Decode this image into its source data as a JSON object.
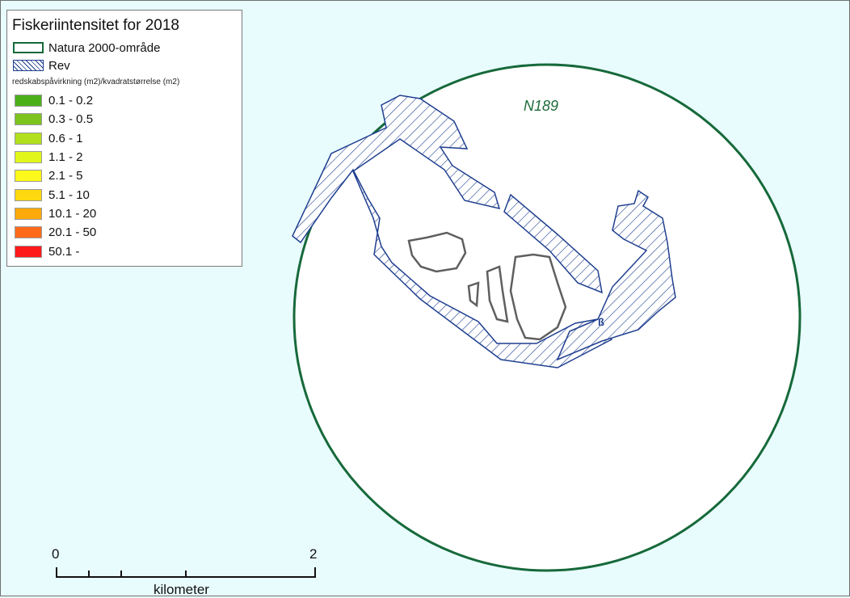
{
  "legend": {
    "title": "Fiskeriintensitet for 2018",
    "natura_label": "Natura 2000-område",
    "rev_label": "Rev",
    "subtitle": "redskabspåvirkning (m2)/kvadratstørrelse (m2)",
    "classes": [
      {
        "label": "0.1 - 0.2",
        "color": "#4caf1a"
      },
      {
        "label": "0.3 - 0.5",
        "color": "#7dc41f"
      },
      {
        "label": "0.6 - 1",
        "color": "#b2e01e"
      },
      {
        "label": "1.1 - 2",
        "color": "#e1f71c"
      },
      {
        "label": "2.1 - 5",
        "color": "#fdf91a"
      },
      {
        "label": "5.1 - 10",
        "color": "#ffd90f"
      },
      {
        "label": "10.1 - 20",
        "color": "#ffaa0a"
      },
      {
        "label": "20.1 - 50",
        "color": "#ff6a1a"
      },
      {
        "label": "50.1 -",
        "color": "#ff1a1a"
      }
    ]
  },
  "map": {
    "area_label": "N189",
    "colors": {
      "sea": "#e8fbfd",
      "natura": "#16693a",
      "rev": "#1f3f8f",
      "land": "#5f5f5f"
    }
  },
  "scalebar": {
    "start": "0",
    "end": "2",
    "unit": "kilometer"
  }
}
